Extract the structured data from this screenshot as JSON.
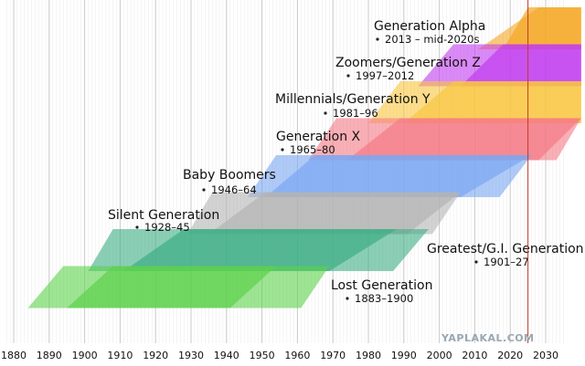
{
  "watermark": "YAPLAKAL.COM",
  "chart_data": {
    "type": "timeline",
    "xlim": [
      1878,
      2035
    ],
    "x_ticks": [
      1880,
      1890,
      1900,
      1910,
      1920,
      1930,
      1940,
      1950,
      1960,
      1970,
      1980,
      1990,
      2000,
      2010,
      2020,
      2030
    ],
    "minor_grid_step_years": 1,
    "current_year_marker": 2025,
    "marker_color": "#c0392b",
    "generations": [
      {
        "name": "Generation Alpha",
        "range": "2013 – mid-2020s",
        "birth_start": 2013,
        "birth_end": 2025,
        "color": "#f5a623",
        "outer": [
          2011,
          2028,
          2040,
          2040
        ],
        "inner": [
          2018,
          2025,
          2040,
          2040
        ]
      },
      {
        "name": "Zoomers/Generation Z",
        "range": "1997–2012",
        "birth_start": 1997,
        "birth_end": 2012,
        "color": "#c23cf0",
        "outer": [
          1994,
          2004,
          2040,
          2040
        ],
        "inner": [
          2006,
          2018,
          2040,
          2040
        ]
      },
      {
        "name": "Millennials/Generation Y",
        "range": "1981–96",
        "birth_start": 1981,
        "birth_end": 1996,
        "color": "#f8c640",
        "outer": [
          1980,
          1989,
          2040,
          2040
        ],
        "inner": [
          1990,
          2004,
          2040,
          2040
        ]
      },
      {
        "name": "Generation X",
        "range": "1965–80",
        "birth_start": 1965,
        "birth_end": 1980,
        "color": "#f57a86",
        "outer": [
          1963,
          1971,
          2033,
          2040
        ],
        "inner": [
          1974,
          1989,
          2028,
          2040
        ]
      },
      {
        "name": "Baby Boomers",
        "range": "1946–64",
        "birth_start": 1946,
        "birth_end": 1964,
        "color": "#7aa6f2",
        "outer": [
          1946,
          1954,
          2017,
          2026
        ],
        "inner": [
          1951,
          1965,
          2006,
          2026
        ]
      },
      {
        "name": "Silent Generation",
        "range": "1928–45",
        "birth_start": 1928,
        "birth_end": 1945,
        "color": "#b4b4b4",
        "outer": [
          1929,
          1936,
          1998,
          2006
        ],
        "inner": [
          1935,
          1951,
          1991,
          2006
        ]
      },
      {
        "name": "Greatest/G.I. Generation",
        "range": "1901–27",
        "birth_start": 1901,
        "birth_end": 1927,
        "color": "#3dae86",
        "outer": [
          1901,
          1908,
          1987,
          1997
        ],
        "inner": [
          1911,
          1928,
          1969,
          1988
        ]
      },
      {
        "name": "Lost Generation",
        "range": "1883–1900",
        "birth_start": 1883,
        "birth_end": 1900,
        "color": "#5cd24b",
        "outer": [
          1884,
          1894,
          1961,
          1969
        ],
        "inner": [
          1895,
          1908,
          1941,
          1954
        ]
      }
    ]
  }
}
